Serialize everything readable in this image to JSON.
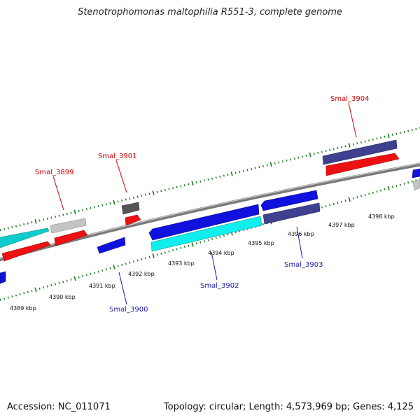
{
  "title": "Stenotrophomonas maltophilia R551-3, complete genome",
  "footer": {
    "accession": "Accession: NC_011071",
    "topology": "Topology: circular; Length: 4,573,969 bp; Genes: 4,125"
  },
  "colors": {
    "backbone": "#808080",
    "tick_dots": "#1a7a1a",
    "label_upper": "#cc0000",
    "label_lower": "#1a1aaa",
    "red": "#ee1111",
    "blue": "#1111dd",
    "cyan": "#11dddd",
    "slate": "#404090",
    "gray": "#c4c4c4",
    "dark_gray": "#555555"
  },
  "kbp_labels": [
    "4389 kbp",
    "4390 kbp",
    "4391 kbp",
    "4392 kbp",
    "4393 kbp",
    "4394 kbp",
    "4395 kbp",
    "4396 kbp",
    "4397 kbp",
    "4398 kbp"
  ],
  "gene_labels": [
    {
      "name": "Smal_3899",
      "strand": "forward"
    },
    {
      "name": "Smal_3901",
      "strand": "forward"
    },
    {
      "name": "Smal_3904",
      "strand": "forward"
    },
    {
      "name": "Smal_3900",
      "strand": "reverse"
    },
    {
      "name": "Smal_3902",
      "strand": "reverse"
    },
    {
      "name": "Smal_3903",
      "strand": "reverse"
    }
  ]
}
